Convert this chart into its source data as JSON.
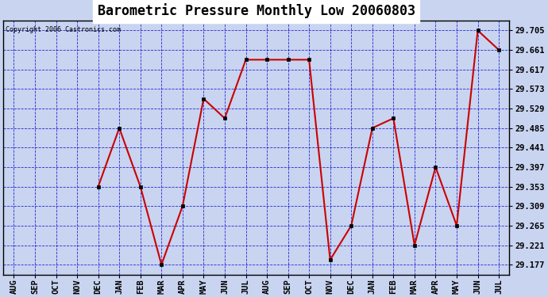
{
  "title": "Barometric Pressure Monthly Low 20060803",
  "copyright": "Copyright 2006 Castronics.com",
  "x_labels": [
    "AUG",
    "SEP",
    "OCT",
    "NOV",
    "DEC",
    "JAN",
    "FEB",
    "MAR",
    "APR",
    "MAY",
    "JUN",
    "JUL",
    "AUG",
    "SEP",
    "OCT",
    "NOV",
    "DEC",
    "JAN",
    "FEB",
    "MAR",
    "APR",
    "MAY",
    "JUN",
    "JUL"
  ],
  "y_values": [
    null,
    null,
    null,
    null,
    29.353,
    29.485,
    29.353,
    29.177,
    29.309,
    29.551,
    29.507,
    29.639,
    29.639,
    29.639,
    29.639,
    29.188,
    29.265,
    29.485,
    29.507,
    29.221,
    29.397,
    29.265,
    29.705,
    29.661
  ],
  "ylim_min": 29.155,
  "ylim_max": 29.727,
  "y_ticks": [
    29.177,
    29.221,
    29.265,
    29.309,
    29.353,
    29.397,
    29.441,
    29.485,
    29.529,
    29.573,
    29.617,
    29.661,
    29.705
  ],
  "title_bg_color": "#ffffff",
  "plot_bg_color": "#c8d4f0",
  "outer_bg_color": "#c8d4f0",
  "line_color": "#cc0000",
  "grid_color": "#0000cc",
  "title_fontsize": 12,
  "tick_fontsize": 7.5,
  "copyright_fontsize": 6
}
